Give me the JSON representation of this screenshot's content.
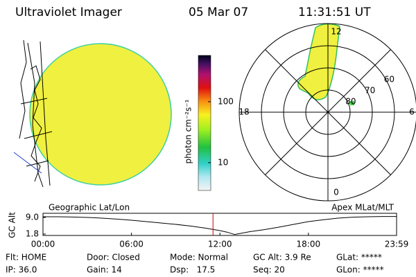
{
  "header": {
    "title": "Ultraviolet Imager",
    "date": "05 Mar 07",
    "time": "11:31:51 UT"
  },
  "colorbar": {
    "label": "photon cm⁻²s⁻¹",
    "log": true,
    "clim": [
      3.5,
      575
    ],
    "ticks": [
      10,
      100
    ]
  },
  "polar": {
    "mlt_ticks": [
      12,
      18,
      6,
      0
    ],
    "lat_ticks": [
      60,
      70,
      80
    ],
    "rlim": [
      90,
      50
    ]
  },
  "orbit": {
    "left_label": "Geographic Lat/Lon",
    "right_label": "Apex MLat/MLT",
    "ylabel": "GC Alt",
    "yticks": [
      {
        "value": 9,
        "label": "9.0"
      },
      1.8
    ],
    "ylim": [
      1.2,
      10.8
    ],
    "xticks": [
      {
        "value": 0,
        "label": "00:00"
      },
      {
        "value": 6,
        "label": "06:00"
      },
      {
        "value": 12,
        "label": "12:00"
      },
      {
        "value": 18,
        "label": "18:00"
      },
      {
        "value": 23.98,
        "label": "23:59"
      }
    ],
    "xlim": [
      0,
      23.98
    ],
    "current_time": 11.53,
    "color": "#000000",
    "marker_color": "#cc0000",
    "x": [
      0,
      1,
      2,
      3,
      4,
      5,
      6,
      7,
      8,
      9,
      10,
      11,
      12,
      12.5,
      13,
      13.5,
      14,
      15,
      16,
      17,
      18,
      19,
      20,
      21,
      22,
      23,
      23.98
    ],
    "values": [
      9.3,
      9.3,
      9.2,
      9.0,
      8.7,
      8.3,
      7.8,
      7.2,
      6.6,
      6.0,
      5.3,
      4.4,
      3.3,
      2.6,
      1.6,
      2.2,
      2.8,
      3.7,
      4.8,
      6.0,
      7.2,
      8.0,
      8.7,
      9.1,
      9.3,
      9.4,
      9.4
    ]
  },
  "status": [
    "Flt: HOME",
    "Door: Closed",
    "Mode: Normal",
    "GC Alt: 3.9 Re",
    "GLat: *****",
    "IP: 36.0",
    "Gain: 14",
    "Dsp:   17.5",
    "Seq: 20",
    "GLon: *****"
  ]
}
